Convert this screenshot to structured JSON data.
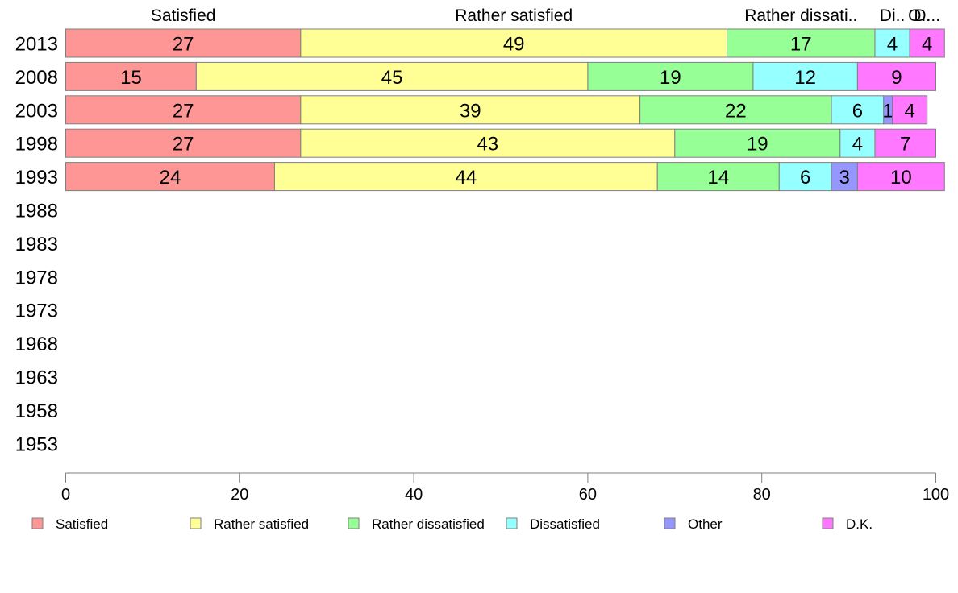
{
  "chart_data": {
    "type": "bar",
    "orientation": "horizontal",
    "stacked": true,
    "categories": [
      "2013",
      "2008",
      "2003",
      "1998",
      "1993",
      "1988",
      "1983",
      "1978",
      "1973",
      "1968",
      "1963",
      "1958",
      "1953"
    ],
    "series": [
      {
        "name": "Satisfied",
        "color": "#ff9696",
        "values": [
          27,
          15,
          27,
          27,
          24,
          null,
          null,
          null,
          null,
          null,
          null,
          null,
          null
        ]
      },
      {
        "name": "Rather satisfied",
        "color": "#ffff96",
        "values": [
          49,
          45,
          39,
          43,
          44,
          null,
          null,
          null,
          null,
          null,
          null,
          null,
          null
        ]
      },
      {
        "name": "Rather dissatisfied",
        "color": "#96ff96",
        "values": [
          17,
          19,
          22,
          19,
          14,
          null,
          null,
          null,
          null,
          null,
          null,
          null,
          null
        ]
      },
      {
        "name": "Dissatisfied",
        "color": "#96ffff",
        "values": [
          4,
          12,
          6,
          4,
          6,
          null,
          null,
          null,
          null,
          null,
          null,
          null,
          null
        ]
      },
      {
        "name": "Other",
        "color": "#9696ff",
        "values": [
          0,
          0,
          1,
          0,
          3,
          null,
          null,
          null,
          null,
          null,
          null,
          null,
          null
        ]
      },
      {
        "name": "D.K.",
        "color": "#ff78ff",
        "values": [
          4,
          9,
          4,
          7,
          10,
          null,
          null,
          null,
          null,
          null,
          null,
          null,
          null
        ]
      }
    ],
    "top_labels": [
      "Satisfied",
      "Rather satisfied",
      "Rather dissati..",
      "Di..",
      "O..",
      "D..."
    ],
    "xlim": [
      0,
      100
    ],
    "xticks": [
      0,
      20,
      40,
      60,
      80,
      100
    ],
    "grid": false,
    "legend_position": "bottom"
  }
}
